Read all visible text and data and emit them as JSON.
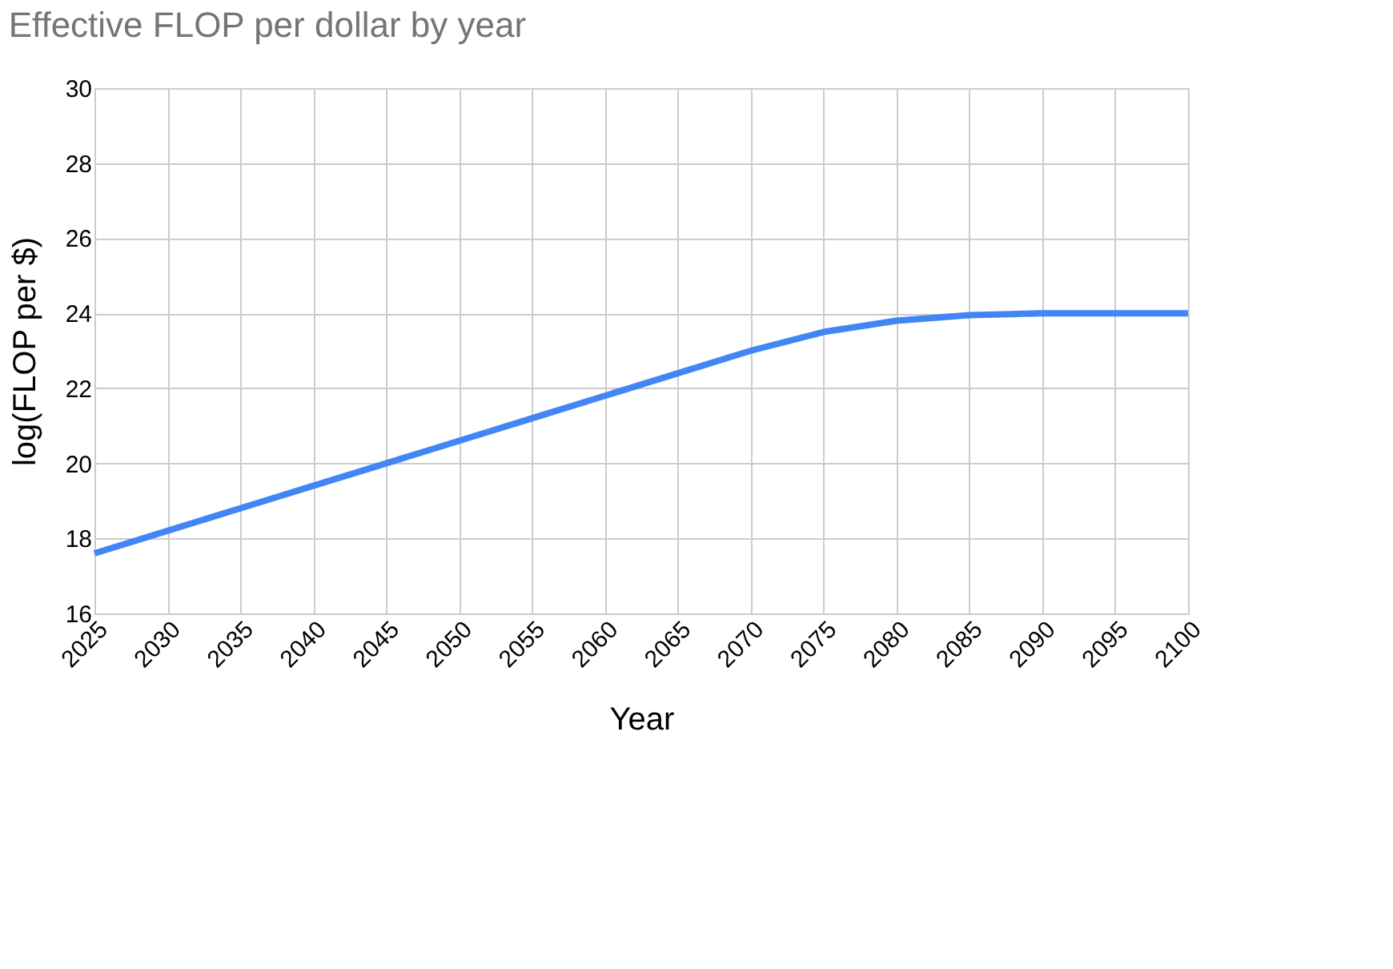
{
  "chart_data": {
    "type": "line",
    "title": "Effective FLOP per dollar by year",
    "xlabel": "Year",
    "ylabel": "log(FLOP per $)",
    "x": [
      2025,
      2030,
      2035,
      2040,
      2045,
      2050,
      2055,
      2060,
      2065,
      2070,
      2075,
      2080,
      2085,
      2090,
      2095,
      2100
    ],
    "series": [
      {
        "color": "#4285f4",
        "values": [
          17.6,
          18.2,
          18.8,
          19.4,
          20.0,
          20.6,
          21.2,
          21.8,
          22.4,
          23.0,
          23.5,
          23.8,
          23.95,
          24.0,
          24.0,
          24.0
        ]
      }
    ],
    "xlim": [
      2025,
      2100
    ],
    "xticks": [
      2025,
      2030,
      2035,
      2040,
      2045,
      2050,
      2055,
      2060,
      2065,
      2070,
      2075,
      2080,
      2085,
      2090,
      2095,
      2100
    ],
    "ylim": [
      16,
      30
    ],
    "yticks": [
      16,
      18,
      20,
      22,
      24,
      26,
      28,
      30
    ],
    "grid": true,
    "legend": false,
    "marker": "none",
    "line_style": "solid"
  }
}
